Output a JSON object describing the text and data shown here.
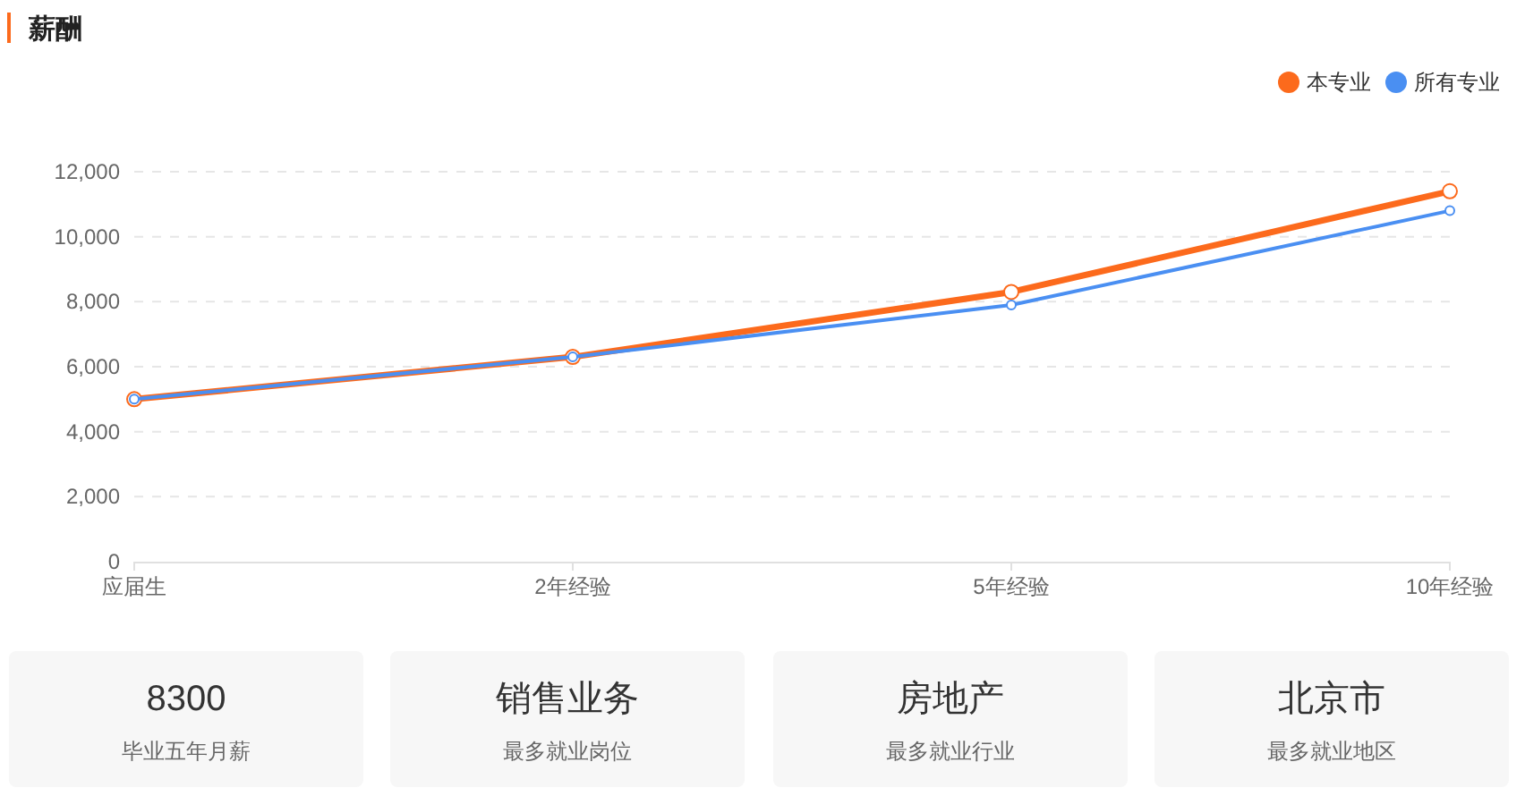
{
  "chart_data": [
    {
      "type": "line",
      "title": "薪酬",
      "categories": [
        "应届生",
        "2年经验",
        "5年经验",
        "10年经验"
      ],
      "series": [
        {
          "name": "本专业",
          "color": "#fc6a1c",
          "values": [
            5000,
            6300,
            8300,
            11400
          ]
        },
        {
          "name": "所有专业",
          "color": "#4a8ff2",
          "values": [
            5000,
            6300,
            7900,
            10800
          ]
        }
      ],
      "ylim": [
        0,
        12000
      ],
      "yticks": [
        0,
        {
          "value": 2000,
          "label": "2,000"
        },
        {
          "value": 4000,
          "label": "4,000"
        },
        {
          "value": 6000,
          "label": "6,000"
        },
        {
          "value": 8000,
          "label": "8,000"
        },
        {
          "value": 10000,
          "label": "10,000"
        },
        {
          "value": 12000,
          "label": "12,000"
        }
      ],
      "grid": "y",
      "legend": "top right",
      "marker": "circle",
      "line_style": "solid"
    },
    {
      "type": "other",
      "annotations": [
        "8300",
        "毕业五年月薪",
        "销售业务",
        "最多就业岗位",
        "房地产",
        "最多就业行业",
        "北京市",
        "最多就业地区"
      ]
    }
  ]
}
